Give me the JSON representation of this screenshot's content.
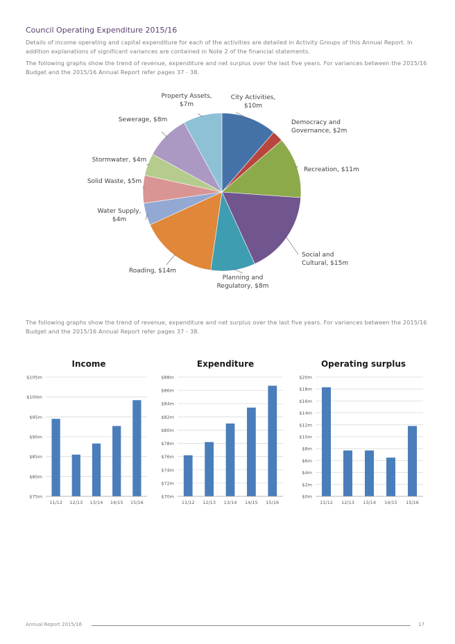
{
  "page": {
    "heading": "Council Operating Expenditure 2015/16",
    "para1": "Details of income operating and capital expenditure for each of the activities are detailed in Activity Groups of this Annual Report. In addition explanations of significant variances are contained in Note 2 of the financial statements.",
    "para2": "The following graphs show the trend of revenue, expenditure and net surplus over the last five years. For variances between the 2015/16 Budget and the 2015/16 Annual Report refer pages 37 - 38.",
    "para3": "The following graphs show the trend of revenue, expenditure and net surplus over the last five years. For variances between the 2015/16 Budget and the 2015/16 Annual Report refer pages 37 - 38.",
    "footer_text": "Annual Report 2015/16",
    "page_number": "17"
  },
  "chart_data": [
    {
      "type": "pie",
      "title": "",
      "slices": [
        {
          "label": [
            "City Activities,",
            "$10m"
          ],
          "value": 10,
          "color": "#4472a8"
        },
        {
          "label": [
            "Democracy and",
            "Governance, $2m"
          ],
          "value": 2,
          "color": "#b8463f"
        },
        {
          "label": [
            "Recreation, $11m"
          ],
          "value": 11,
          "color": "#8caa4a"
        },
        {
          "label": [
            "Social and",
            "Cultural, $15m"
          ],
          "value": 15,
          "color": "#71558f"
        },
        {
          "label": [
            "Planning and",
            "Regulatory, $8m"
          ],
          "value": 8,
          "color": "#3f9db2"
        },
        {
          "label": [
            "Roading, $14m"
          ],
          "value": 14,
          "color": "#e0873a"
        },
        {
          "label": [
            "Water Supply,",
            "$4m"
          ],
          "value": 4,
          "color": "#93a9d4"
        },
        {
          "label": [
            "Solid Waste, $5m"
          ],
          "value": 5,
          "color": "#d99593"
        },
        {
          "label": [
            "Stormwater, $4m"
          ],
          "value": 4,
          "color": "#b5cc8e"
        },
        {
          "label": [
            "Sewerage, $8m"
          ],
          "value": 8,
          "color": "#ab99c3"
        },
        {
          "label": [
            "Property Assets,",
            "$7m"
          ],
          "value": 7,
          "color": "#8fc1d6"
        }
      ]
    },
    {
      "type": "bar",
      "title": "Income",
      "categories": [
        "11/12",
        "12/13",
        "13/14",
        "14/15",
        "15/16"
      ],
      "values": [
        94.5,
        85.5,
        88.3,
        92.7,
        99.2
      ],
      "ylim": [
        75,
        105
      ],
      "yticks": [
        75,
        80,
        85,
        90,
        95,
        100,
        105
      ],
      "tick_labels": [
        "$75m",
        "$80m",
        "$85m",
        "$90m",
        "$95m",
        "$100m",
        "$105m"
      ],
      "color": "#4a7ebb"
    },
    {
      "type": "bar",
      "title": "Expenditure",
      "categories": [
        "11/12",
        "12/13",
        "13/14",
        "14/15",
        "15/16"
      ],
      "values": [
        76.2,
        78.2,
        81,
        83.4,
        86.7
      ],
      "ylim": [
        70,
        88
      ],
      "yticks": [
        70,
        72,
        74,
        76,
        78,
        80,
        82,
        84,
        86,
        88
      ],
      "tick_labels": [
        "$70m",
        "$72m",
        "$74m",
        "$76m",
        "$78m",
        "$80m",
        "$82m",
        "$84m",
        "$86m",
        "$88m"
      ],
      "color": "#4a7ebb"
    },
    {
      "type": "bar",
      "title": "Operating surplus",
      "categories": [
        "11/12",
        "12/13",
        "13/14",
        "14/15",
        "15/16"
      ],
      "values": [
        18.3,
        7.7,
        7.7,
        6.5,
        11.8
      ],
      "ylim": [
        0,
        20
      ],
      "yticks": [
        0,
        2,
        4,
        6,
        8,
        10,
        12,
        14,
        16,
        18,
        20
      ],
      "tick_labels": [
        "$0m",
        "$2m",
        "$4m",
        "$6m",
        "$8m",
        "$10m",
        "$12m",
        "$14m",
        "$16m",
        "$18m",
        "$20m"
      ],
      "color": "#4a7ebb"
    }
  ]
}
